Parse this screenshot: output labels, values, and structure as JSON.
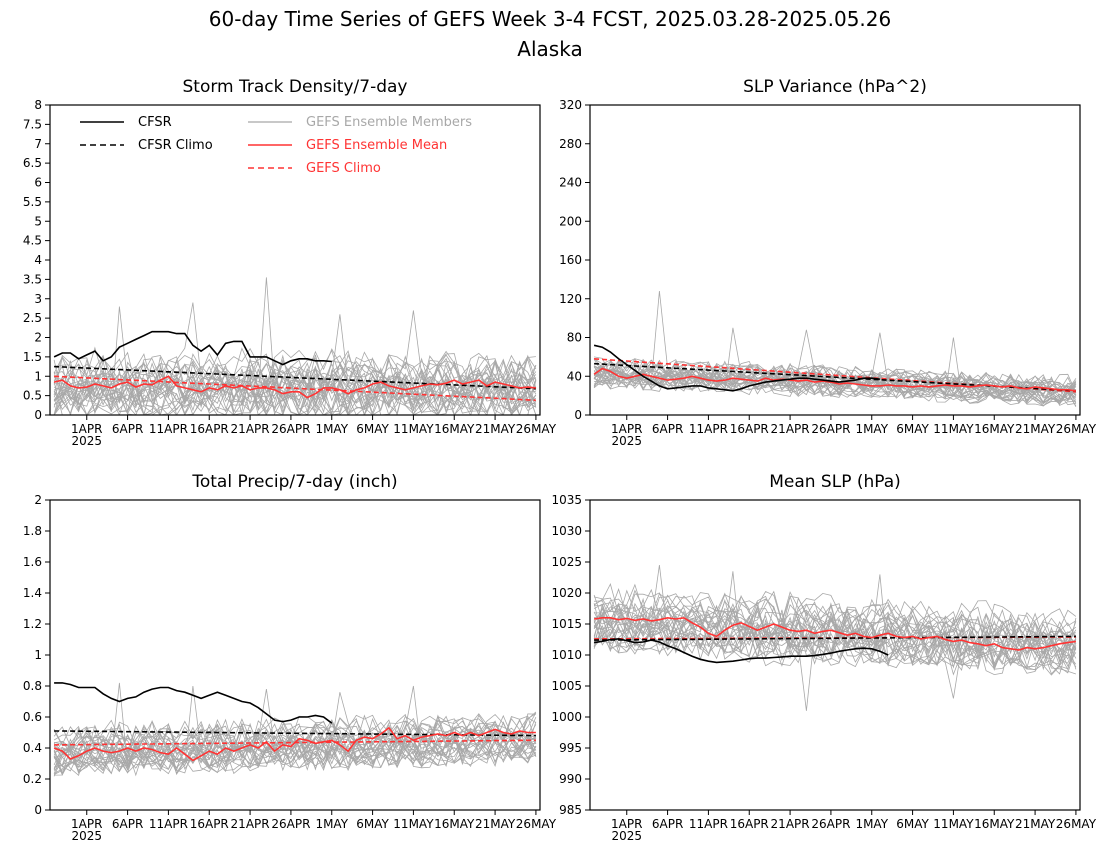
{
  "figure": {
    "title": "60-day Time Series of GEFS Week 3-4 FCST, 2025.03.28-2025.05.26",
    "subtitle": "Alaska"
  },
  "legend": {
    "cfsr": "CFSR",
    "cfsr_climo": "CFSR Climo",
    "members": "GEFS Ensemble Members",
    "ens_mean": "GEFS Ensemble Mean",
    "gefs_climo": "GEFS Climo"
  },
  "colors": {
    "obs": "#000000",
    "gefs": "#ff3333",
    "members": "#a8a8a8"
  },
  "x_axis": {
    "start_date": "2025-03-28",
    "num_days": 60,
    "ticks": [
      {
        "day": 4,
        "label": "1APR"
      },
      {
        "day": 9,
        "label": "6APR"
      },
      {
        "day": 14,
        "label": "11APR"
      },
      {
        "day": 19,
        "label": "16APR"
      },
      {
        "day": 24,
        "label": "21APR"
      },
      {
        "day": 29,
        "label": "26APR"
      },
      {
        "day": 34,
        "label": "1MAY"
      },
      {
        "day": 39,
        "label": "6MAY"
      },
      {
        "day": 44,
        "label": "11MAY"
      },
      {
        "day": 49,
        "label": "16MAY"
      },
      {
        "day": 54,
        "label": "21MAY"
      },
      {
        "day": 59,
        "label": "26MAY"
      }
    ],
    "year_label": "2025",
    "year_day": 4
  },
  "chart_data": [
    {
      "type": "line",
      "title": "Storm Track Density/7-day",
      "ylim": [
        0,
        8
      ],
      "yticks": [
        "0",
        "0.5",
        "1",
        "1.5",
        "2",
        "2.5",
        "3",
        "3.5",
        "4",
        "4.5",
        "5",
        "5.5",
        "6",
        "6.5",
        "7",
        "7.5",
        "8"
      ],
      "series": [
        {
          "name": "CFSR",
          "style": "obs_solid",
          "values": [
            1.5,
            1.6,
            1.6,
            1.45,
            1.55,
            1.65,
            1.4,
            1.5,
            1.75,
            1.85,
            1.95,
            2.05,
            2.15,
            2.15,
            2.15,
            2.1,
            2.1,
            1.8,
            1.65,
            1.8,
            1.55,
            1.85,
            1.9,
            1.9,
            1.5,
            1.5,
            1.5,
            1.4,
            1.3,
            1.4,
            1.45,
            1.45,
            1.4,
            1.4,
            1.38
          ]
        },
        {
          "name": "CFSR Climo",
          "style": "obs_dash",
          "values_linear": [
            1.25,
            0.68
          ]
        },
        {
          "name": "GEFS Ensemble Mean",
          "style": "gefs_solid",
          "values": [
            0.85,
            0.9,
            0.75,
            0.7,
            0.72,
            0.8,
            0.75,
            0.7,
            0.8,
            0.85,
            0.72,
            0.8,
            0.78,
            0.9,
            1.0,
            0.75,
            0.7,
            0.65,
            0.6,
            0.7,
            0.65,
            0.75,
            0.7,
            0.75,
            0.65,
            0.7,
            0.7,
            0.65,
            0.55,
            0.6,
            0.6,
            0.45,
            0.55,
            0.7,
            0.7,
            0.65,
            0.55,
            0.65,
            0.7,
            0.8,
            0.85,
            0.75,
            0.7,
            0.65,
            0.7,
            0.75,
            0.8,
            0.78,
            0.82,
            0.9,
            0.8,
            0.85,
            0.9,
            0.75,
            0.85,
            0.8,
            0.75,
            0.7,
            0.72,
            0.7
          ]
        },
        {
          "name": "GEFS Climo",
          "style": "gefs_dash",
          "values_linear": [
            1.0,
            0.38
          ]
        }
      ],
      "members": {
        "count": 30,
        "center_linear": [
          0.75,
          0.75
        ],
        "spread": 0.45,
        "noise": 0.55,
        "spike_values": [
          2.8,
          2.9,
          3.55,
          2.6,
          2.7
        ],
        "seed": 11
      }
    },
    {
      "type": "line",
      "title": "SLP Variance (hPa^2)",
      "ylim": [
        0,
        320
      ],
      "yticks": [
        "0",
        "40",
        "80",
        "120",
        "160",
        "200",
        "240",
        "280",
        "320"
      ],
      "series": [
        {
          "name": "CFSR",
          "style": "obs_solid",
          "values": [
            72,
            70,
            65,
            58,
            52,
            46,
            40,
            35,
            30,
            27,
            28,
            29,
            30,
            30,
            28,
            27,
            26,
            25,
            27,
            30,
            32,
            34,
            35,
            36,
            37,
            38,
            38,
            37,
            36,
            35,
            34,
            35,
            36,
            38,
            38,
            37
          ]
        },
        {
          "name": "CFSR Climo",
          "style": "obs_dash",
          "values_linear": [
            53,
            25
          ]
        },
        {
          "name": "GEFS Ensemble Mean",
          "style": "gefs_solid",
          "values": [
            42,
            48,
            45,
            40,
            38,
            40,
            42,
            40,
            38,
            36,
            37,
            38,
            40,
            38,
            36,
            35,
            36,
            38,
            37,
            36,
            35,
            38,
            36,
            37,
            36,
            35,
            36,
            34,
            35,
            34,
            32,
            33,
            32,
            31,
            30,
            30,
            31,
            30,
            30,
            29,
            30,
            29,
            30,
            31,
            30,
            30,
            29,
            30,
            31,
            30,
            29,
            30,
            28,
            27,
            29,
            28,
            27,
            26,
            26,
            25
          ]
        },
        {
          "name": "GEFS Climo",
          "style": "gefs_dash",
          "values_linear": [
            58,
            24
          ]
        }
      ],
      "members": {
        "count": 30,
        "center_linear": [
          46,
          27
        ],
        "spread": 9,
        "noise": 11,
        "spike_values": [
          128,
          90,
          88,
          85,
          80
        ],
        "seed": 29
      }
    },
    {
      "type": "line",
      "title": "Total Precip/7-day (inch)",
      "ylim": [
        0,
        2
      ],
      "yticks": [
        "0",
        "0.2",
        "0.4",
        "0.6",
        "0.8",
        "1",
        "1.2",
        "1.4",
        "1.6",
        "1.8",
        "2"
      ],
      "series": [
        {
          "name": "CFSR",
          "style": "obs_solid",
          "values": [
            0.82,
            0.82,
            0.81,
            0.79,
            0.79,
            0.79,
            0.75,
            0.72,
            0.7,
            0.72,
            0.73,
            0.76,
            0.78,
            0.79,
            0.79,
            0.77,
            0.76,
            0.74,
            0.72,
            0.74,
            0.76,
            0.74,
            0.72,
            0.7,
            0.69,
            0.66,
            0.62,
            0.58,
            0.57,
            0.58,
            0.6,
            0.6,
            0.61,
            0.6,
            0.56
          ]
        },
        {
          "name": "CFSR Climo",
          "style": "obs_dash",
          "values_linear": [
            0.51,
            0.48
          ]
        },
        {
          "name": "GEFS Ensemble Mean",
          "style": "gefs_solid",
          "values": [
            0.4,
            0.38,
            0.33,
            0.35,
            0.38,
            0.4,
            0.38,
            0.37,
            0.38,
            0.4,
            0.38,
            0.4,
            0.39,
            0.37,
            0.36,
            0.4,
            0.36,
            0.32,
            0.35,
            0.38,
            0.36,
            0.4,
            0.38,
            0.4,
            0.42,
            0.4,
            0.44,
            0.38,
            0.42,
            0.41,
            0.46,
            0.45,
            0.43,
            0.44,
            0.45,
            0.42,
            0.38,
            0.45,
            0.47,
            0.46,
            0.49,
            0.53,
            0.46,
            0.48,
            0.45,
            0.47,
            0.48,
            0.49,
            0.48,
            0.5,
            0.48,
            0.5,
            0.48,
            0.5,
            0.52,
            0.5,
            0.49,
            0.51,
            0.5,
            0.5
          ]
        },
        {
          "name": "GEFS Climo",
          "style": "gefs_dash",
          "values_linear": [
            0.42,
            0.45
          ]
        }
      ],
      "members": {
        "count": 30,
        "center_linear": [
          0.38,
          0.47
        ],
        "spread": 0.09,
        "noise": 0.1,
        "spike_values": [
          0.82,
          0.8,
          0.78,
          0.76,
          0.8
        ],
        "seed": 47
      }
    },
    {
      "type": "line",
      "title": "Mean SLP (hPa)",
      "ylim": [
        985,
        1035
      ],
      "yticks": [
        "985",
        "990",
        "995",
        "1000",
        "1005",
        "1010",
        "1015",
        "1020",
        "1025",
        "1030",
        "1035"
      ],
      "series": [
        {
          "name": "CFSR",
          "style": "obs_solid",
          "values": [
            1012.0,
            1012.2,
            1012.5,
            1012.6,
            1012.3,
            1012.0,
            1012.1,
            1012.4,
            1012.1,
            1011.5,
            1011.0,
            1010.4,
            1009.8,
            1009.3,
            1009.0,
            1008.8,
            1008.9,
            1009.0,
            1009.2,
            1009.4,
            1009.5,
            1009.5,
            1009.6,
            1009.7,
            1009.8,
            1009.8,
            1009.8,
            1009.9,
            1010.1,
            1010.3,
            1010.6,
            1010.8,
            1011.0,
            1011.1,
            1011.0,
            1010.6,
            1010.0
          ]
        },
        {
          "name": "CFSR Climo",
          "style": "obs_dash",
          "values_linear": [
            1012.4,
            1013.0
          ]
        },
        {
          "name": "GEFS Ensemble Mean",
          "style": "gefs_solid",
          "values": [
            1015.8,
            1016.0,
            1016.0,
            1015.7,
            1015.9,
            1015.6,
            1015.8,
            1015.5,
            1015.7,
            1016.0,
            1015.8,
            1016.0,
            1015.2,
            1014.5,
            1013.5,
            1013.0,
            1014.0,
            1014.8,
            1015.2,
            1014.6,
            1014.0,
            1014.5,
            1015.0,
            1014.5,
            1014.0,
            1013.8,
            1014.0,
            1013.5,
            1013.8,
            1014.0,
            1013.6,
            1013.2,
            1013.5,
            1013.0,
            1012.8,
            1013.2,
            1013.5,
            1013.0,
            1012.8,
            1013.0,
            1012.6,
            1012.8,
            1013.0,
            1012.5,
            1012.2,
            1012.4,
            1012.0,
            1011.8,
            1011.5,
            1011.8,
            1011.2,
            1011.0,
            1010.8,
            1011.2,
            1011.0,
            1011.2,
            1011.5,
            1011.8,
            1012.0,
            1012.2
          ]
        },
        {
          "name": "GEFS Climo",
          "style": "gefs_dash",
          "values_linear": [
            1012.6,
            1012.9
          ]
        }
      ],
      "members": {
        "count": 30,
        "center_linear": [
          1015.5,
          1012.0
        ],
        "spread": 3.0,
        "noise": 3.2,
        "spike_values": [
          1024.5,
          1023.5,
          1001.0,
          1023.0,
          1003.0
        ],
        "seed": 83
      }
    }
  ]
}
